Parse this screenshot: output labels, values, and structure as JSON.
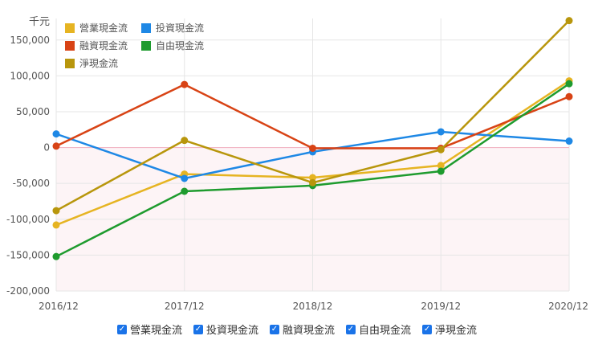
{
  "chart_data": {
    "type": "line",
    "unit_label": "千元",
    "categories": [
      "2016/12",
      "2017/12",
      "2018/12",
      "2019/12",
      "2020/12"
    ],
    "ylim": [
      -200000,
      180000
    ],
    "yticks": [
      -200000,
      -150000,
      -100000,
      -50000,
      0,
      50000,
      100000,
      150000
    ],
    "ytick_labels": [
      "-200,000",
      "-150,000",
      "-100,000",
      "-50,000",
      "0",
      "50,000",
      "100,000",
      "150,000"
    ],
    "grid": true,
    "legend_position": "top-left",
    "series": [
      {
        "name": "營業現金流",
        "color": "#e6b422",
        "values": [
          -108000,
          -37000,
          -42000,
          -25000,
          93000
        ]
      },
      {
        "name": "投資現金流",
        "color": "#1e88e5",
        "values": [
          19000,
          -43000,
          -6000,
          22000,
          9000
        ]
      },
      {
        "name": "融資現金流",
        "color": "#d84315",
        "values": [
          2000,
          88000,
          -1000,
          -1000,
          71000
        ]
      },
      {
        "name": "自由現金流",
        "color": "#1e9b2e",
        "values": [
          -152000,
          -61000,
          -53000,
          -33000,
          89000
        ]
      },
      {
        "name": "淨現金流",
        "color": "#b8960c",
        "values": [
          -88000,
          10000,
          -49000,
          -3000,
          177000
        ]
      }
    ]
  }
}
